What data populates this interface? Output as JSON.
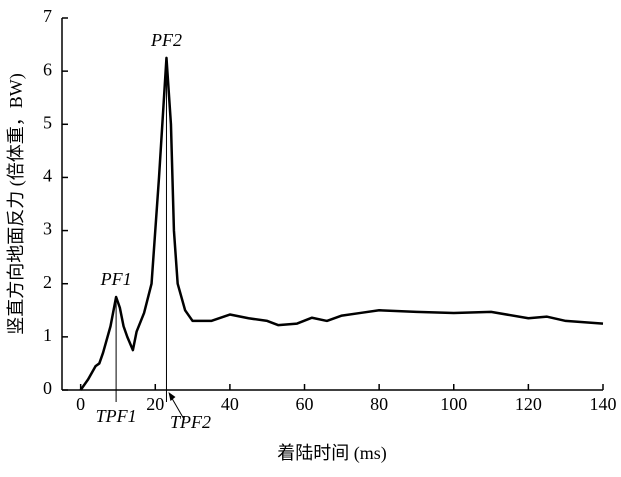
{
  "chart_data": {
    "type": "line",
    "xlabel": "着陆时间 (ms)",
    "ylabel": "竖直方向地面反力 (倍体重，BW)",
    "x": [
      0,
      2,
      4,
      5,
      6,
      8,
      9.5,
      10.5,
      11.5,
      12.5,
      14,
      15,
      17,
      19,
      21,
      23,
      24.2,
      25,
      26,
      28,
      30,
      35,
      40,
      45,
      50,
      53,
      58,
      62,
      66,
      70,
      75,
      80,
      90,
      100,
      110,
      120,
      125,
      130,
      140
    ],
    "values": [
      0,
      0.2,
      0.45,
      0.5,
      0.7,
      1.2,
      1.75,
      1.55,
      1.2,
      1.0,
      0.75,
      1.1,
      1.45,
      2.0,
      4.0,
      6.25,
      5.0,
      3.0,
      2.0,
      1.5,
      1.3,
      1.3,
      1.42,
      1.35,
      1.3,
      1.22,
      1.25,
      1.36,
      1.3,
      1.4,
      1.45,
      1.5,
      1.47,
      1.45,
      1.47,
      1.35,
      1.38,
      1.3,
      1.25
    ],
    "color": "#000000",
    "xlim": [
      -5,
      140
    ],
    "xticks": [
      0,
      20,
      40,
      60,
      80,
      100,
      120,
      140
    ],
    "ylim": [
      0,
      7
    ],
    "yticks": [
      0,
      1,
      2,
      3,
      4,
      5,
      6,
      7
    ],
    "annotations": [
      {
        "text": "PF1",
        "x": 9.5,
        "y": 1.75
      },
      {
        "text": "PF2",
        "x": 23,
        "y": 6.25
      },
      {
        "text": "TPF1",
        "x": 9.5
      },
      {
        "text": "TPF2",
        "x": 23
      }
    ]
  }
}
